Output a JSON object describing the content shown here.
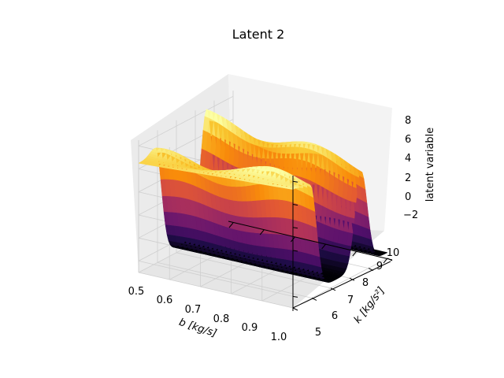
{
  "chart_data": {
    "type": "surface",
    "title": "Latent 2",
    "xlabel": "b [kg/s]",
    "ylabel": "k [kg/s²]",
    "zlabel": "latent variable",
    "xticks": [
      "0.5",
      "0.6",
      "0.7",
      "0.8",
      "0.9",
      "1.0"
    ],
    "yticks": [
      "5",
      "6",
      "7",
      "8",
      "9",
      "10"
    ],
    "zticks": [
      "−2",
      "0",
      "2",
      "4",
      "6",
      "8"
    ],
    "xlim": [
      0.5,
      1.0
    ],
    "ylim": [
      5,
      10
    ],
    "zlim": [
      -3,
      8.5
    ],
    "colormap": "inferno",
    "grid": true,
    "surface": {
      "b_values": [
        0.5,
        0.55,
        0.6,
        0.65,
        0.7,
        0.75,
        0.8,
        0.85,
        0.9,
        0.95,
        1.0
      ],
      "k_min": 5,
      "k_max": 10,
      "ridge_k_centers": [
        6.4,
        9.1
      ],
      "trough_k_min_value": -2.5,
      "ridge1_peak_value": 7.5,
      "ridge2_peak_value": 6.5
    }
  }
}
